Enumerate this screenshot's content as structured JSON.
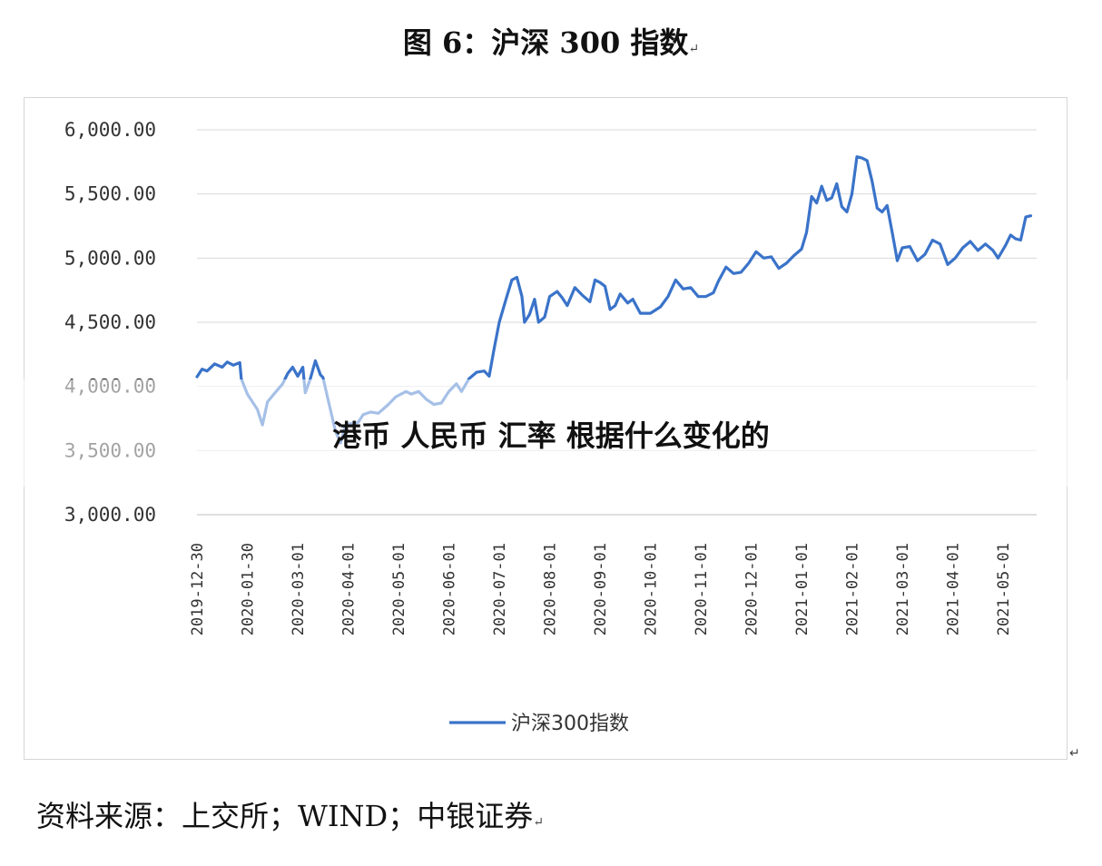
{
  "figure": {
    "title": "图 6：沪深 300 指数",
    "paragraph_mark": "↵",
    "source": "资料来源：上交所；WIND；中银证券"
  },
  "overlay": {
    "text": "港币 人民币 汇率 根据什么变化的"
  },
  "colors": {
    "line": "#3a73c9",
    "grid": "#d9d9d9",
    "axis": "#bfbfbf",
    "overlay_band": "#ffffff"
  },
  "chart_data": {
    "type": "line",
    "title": "",
    "xlabel": "",
    "ylabel": "",
    "ylim": [
      3000,
      6000
    ],
    "yticks": [
      "6,000.00",
      "5,500.00",
      "5,000.00",
      "4,500.00",
      "4,000.00",
      "3,500.00",
      "3,000.00"
    ],
    "grid": true,
    "legend_position": "bottom",
    "categories": [
      "2019-12-30",
      "2020-01-30",
      "2020-03-01",
      "2020-04-01",
      "2020-05-01",
      "2020-06-01",
      "2020-07-01",
      "2020-08-01",
      "2020-09-01",
      "2020-10-01",
      "2020-11-01",
      "2020-12-01",
      "2021-01-01",
      "2021-02-01",
      "2021-03-01",
      "2021-04-01",
      "2021-05-01"
    ],
    "series": [
      {
        "name": "沪深300指数",
        "points": [
          [
            0,
            4075
          ],
          [
            0.1,
            4135
          ],
          [
            0.2,
            4120
          ],
          [
            0.35,
            4175
          ],
          [
            0.5,
            4150
          ],
          [
            0.6,
            4190
          ],
          [
            0.72,
            4165
          ],
          [
            0.85,
            4185
          ],
          [
            0.88,
            4060
          ],
          [
            1.0,
            3940
          ],
          [
            1.2,
            3820
          ],
          [
            1.3,
            3700
          ],
          [
            1.4,
            3880
          ],
          [
            1.55,
            3950
          ],
          [
            1.7,
            4020
          ],
          [
            1.8,
            4100
          ],
          [
            1.9,
            4150
          ],
          [
            2.0,
            4080
          ],
          [
            2.1,
            4150
          ],
          [
            2.15,
            3950
          ],
          [
            2.25,
            4060
          ],
          [
            2.35,
            4200
          ],
          [
            2.45,
            4090
          ],
          [
            2.5,
            4070
          ],
          [
            2.6,
            3900
          ],
          [
            2.75,
            3650
          ],
          [
            2.85,
            3560
          ],
          [
            2.95,
            3700
          ],
          [
            3.05,
            3710
          ],
          [
            3.2,
            3720
          ],
          [
            3.3,
            3780
          ],
          [
            3.45,
            3800
          ],
          [
            3.6,
            3790
          ],
          [
            3.8,
            3860
          ],
          [
            3.95,
            3920
          ],
          [
            4.15,
            3960
          ],
          [
            4.25,
            3940
          ],
          [
            4.4,
            3960
          ],
          [
            4.55,
            3900
          ],
          [
            4.7,
            3860
          ],
          [
            4.85,
            3870
          ],
          [
            5.0,
            3960
          ],
          [
            5.15,
            4020
          ],
          [
            5.25,
            3960
          ],
          [
            5.4,
            4060
          ],
          [
            5.55,
            4110
          ],
          [
            5.7,
            4120
          ],
          [
            5.8,
            4080
          ],
          [
            5.9,
            4300
          ],
          [
            6.0,
            4500
          ],
          [
            6.15,
            4700
          ],
          [
            6.25,
            4830
          ],
          [
            6.35,
            4850
          ],
          [
            6.45,
            4700
          ],
          [
            6.5,
            4500
          ],
          [
            6.6,
            4560
          ],
          [
            6.7,
            4680
          ],
          [
            6.78,
            4500
          ],
          [
            6.9,
            4540
          ],
          [
            7.0,
            4700
          ],
          [
            7.15,
            4740
          ],
          [
            7.25,
            4690
          ],
          [
            7.35,
            4630
          ],
          [
            7.5,
            4770
          ],
          [
            7.65,
            4710
          ],
          [
            7.8,
            4660
          ],
          [
            7.9,
            4830
          ],
          [
            8.0,
            4810
          ],
          [
            8.1,
            4780
          ],
          [
            8.2,
            4600
          ],
          [
            8.3,
            4630
          ],
          [
            8.4,
            4720
          ],
          [
            8.55,
            4650
          ],
          [
            8.65,
            4680
          ],
          [
            8.8,
            4570
          ],
          [
            9.0,
            4570
          ],
          [
            9.2,
            4620
          ],
          [
            9.35,
            4700
          ],
          [
            9.5,
            4830
          ],
          [
            9.65,
            4760
          ],
          [
            9.8,
            4770
          ],
          [
            9.95,
            4700
          ],
          [
            10.1,
            4700
          ],
          [
            10.25,
            4730
          ],
          [
            10.35,
            4820
          ],
          [
            10.5,
            4930
          ],
          [
            10.65,
            4880
          ],
          [
            10.8,
            4890
          ],
          [
            10.95,
            4960
          ],
          [
            11.1,
            5050
          ],
          [
            11.25,
            5000
          ],
          [
            11.4,
            5010
          ],
          [
            11.55,
            4920
          ],
          [
            11.7,
            4960
          ],
          [
            11.85,
            5020
          ],
          [
            12.0,
            5070
          ],
          [
            12.1,
            5200
          ],
          [
            12.2,
            5480
          ],
          [
            12.3,
            5430
          ],
          [
            12.4,
            5560
          ],
          [
            12.5,
            5450
          ],
          [
            12.6,
            5470
          ],
          [
            12.7,
            5580
          ],
          [
            12.8,
            5400
          ],
          [
            12.9,
            5360
          ],
          [
            13.0,
            5500
          ],
          [
            13.1,
            5790
          ],
          [
            13.2,
            5780
          ],
          [
            13.3,
            5760
          ],
          [
            13.4,
            5600
          ],
          [
            13.5,
            5390
          ],
          [
            13.6,
            5360
          ],
          [
            13.7,
            5410
          ],
          [
            13.8,
            5200
          ],
          [
            13.9,
            4980
          ],
          [
            14.0,
            5080
          ],
          [
            14.15,
            5090
          ],
          [
            14.3,
            4980
          ],
          [
            14.45,
            5030
          ],
          [
            14.6,
            5140
          ],
          [
            14.75,
            5110
          ],
          [
            14.9,
            4950
          ],
          [
            15.05,
            5000
          ],
          [
            15.2,
            5080
          ],
          [
            15.35,
            5130
          ],
          [
            15.5,
            5060
          ],
          [
            15.65,
            5110
          ],
          [
            15.8,
            5060
          ],
          [
            15.9,
            5000
          ],
          [
            16.05,
            5100
          ],
          [
            16.15,
            5180
          ],
          [
            16.25,
            5150
          ],
          [
            16.35,
            5140
          ],
          [
            16.45,
            5320
          ],
          [
            16.55,
            5330
          ]
        ]
      }
    ]
  }
}
